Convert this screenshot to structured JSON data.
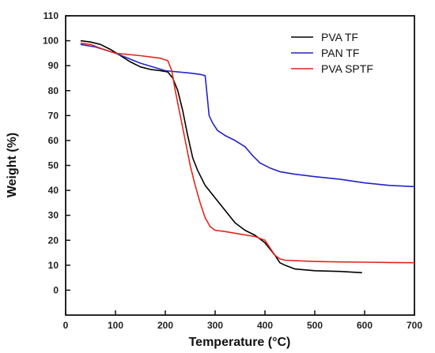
{
  "chart_data": {
    "type": "line",
    "title": "",
    "xlabel": "Temperature (°C)",
    "ylabel": "Weight (%)",
    "xlim": [
      0,
      700
    ],
    "ylim": [
      -10,
      110
    ],
    "xticks": [
      0,
      100,
      200,
      300,
      400,
      500,
      600,
      700
    ],
    "yticks": [
      0,
      10,
      20,
      30,
      40,
      50,
      60,
      70,
      80,
      90,
      100,
      110
    ],
    "grid": false,
    "legend_position": "top-right",
    "series": [
      {
        "name": "PVA TF",
        "color": "#000000",
        "x": [
          30,
          50,
          70,
          90,
          110,
          130,
          150,
          170,
          190,
          205,
          215,
          225,
          235,
          245,
          255,
          265,
          280,
          300,
          320,
          340,
          360,
          380,
          400,
          420,
          430,
          440,
          460,
          500,
          550,
          595
        ],
        "y": [
          100,
          99.5,
          98.5,
          96.5,
          94,
          91.5,
          89.5,
          88.5,
          88,
          87.5,
          85,
          80,
          72,
          62,
          53,
          48,
          42,
          37,
          32,
          27,
          24,
          22,
          19,
          14,
          11,
          10,
          8.5,
          7.8,
          7.5,
          7
        ]
      },
      {
        "name": "PAN TF",
        "color": "#2323c8",
        "x": [
          30,
          60,
          100,
          150,
          200,
          250,
          270,
          280,
          283,
          288,
          295,
          305,
          320,
          340,
          360,
          375,
          390,
          410,
          430,
          460,
          500,
          550,
          600,
          650,
          700
        ],
        "y": [
          98.5,
          97.5,
          95,
          91,
          88,
          87,
          86.5,
          86,
          80,
          70,
          67,
          64,
          62,
          60,
          57.5,
          54,
          51,
          49,
          47.5,
          46.5,
          45.5,
          44.5,
          43,
          42,
          41.5
        ]
      },
      {
        "name": "PVA SPTF",
        "color": "#e3261c",
        "x": [
          30,
          50,
          70,
          100,
          150,
          190,
          205,
          213,
          220,
          230,
          240,
          250,
          260,
          270,
          280,
          290,
          300,
          320,
          350,
          380,
          400,
          410,
          420,
          430,
          440,
          460,
          500,
          550,
          600,
          650,
          700
        ],
        "y": [
          99,
          98.5,
          97,
          95,
          94,
          93,
          92,
          88,
          80,
          70,
          60,
          50,
          42,
          35,
          29,
          25.5,
          24,
          23.5,
          22.5,
          21.5,
          20,
          17,
          14,
          12.5,
          12,
          11.8,
          11.5,
          11.3,
          11.2,
          11.1,
          11
        ]
      }
    ]
  }
}
